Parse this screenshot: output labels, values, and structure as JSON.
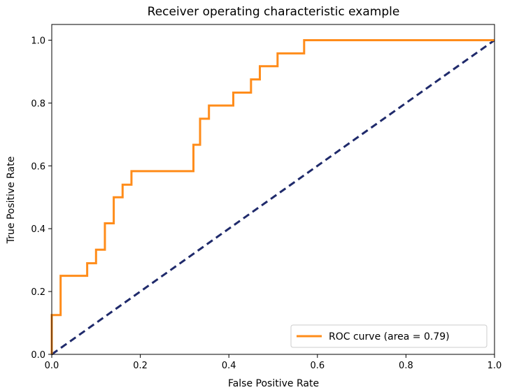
{
  "chart_data": {
    "type": "line",
    "title": "Receiver operating characteristic example",
    "xlabel": "False Positive Rate",
    "ylabel": "True Positive Rate",
    "xlim": [
      0.0,
      1.0
    ],
    "ylim": [
      0.0,
      1.05
    ],
    "x_ticks": [
      0.0,
      0.2,
      0.4,
      0.6,
      0.8,
      1.0
    ],
    "y_ticks": [
      0.0,
      0.2,
      0.4,
      0.6,
      0.8,
      1.0
    ],
    "x_tick_labels": [
      "0.0",
      "0.2",
      "0.4",
      "0.6",
      "0.8",
      "1.0"
    ],
    "y_tick_labels": [
      "0.0",
      "0.2",
      "0.4",
      "0.6",
      "0.8",
      "1.0"
    ],
    "grid": false,
    "legend_position": "lower-right",
    "series": [
      {
        "name": "ROC curve (area = 0.79)",
        "color": "#ff8c1a",
        "style": "solid",
        "x": [
          0.0,
          0.0,
          0.02,
          0.02,
          0.08,
          0.08,
          0.1,
          0.1,
          0.12,
          0.12,
          0.14,
          0.14,
          0.16,
          0.16,
          0.18,
          0.18,
          0.32,
          0.32,
          0.335,
          0.335,
          0.355,
          0.355,
          0.41,
          0.41,
          0.45,
          0.45,
          0.47,
          0.47,
          0.51,
          0.51,
          0.57,
          0.57,
          1.0
        ],
        "y": [
          0.0,
          0.125,
          0.125,
          0.25,
          0.25,
          0.29,
          0.29,
          0.333,
          0.333,
          0.417,
          0.417,
          0.5,
          0.5,
          0.54,
          0.54,
          0.583,
          0.583,
          0.667,
          0.667,
          0.75,
          0.75,
          0.792,
          0.792,
          0.833,
          0.833,
          0.875,
          0.875,
          0.917,
          0.917,
          0.958,
          0.958,
          1.0,
          1.0
        ]
      },
      {
        "name": "",
        "color": "#1f2a6b",
        "style": "dashed",
        "x": [
          0.0,
          1.0
        ],
        "y": [
          0.0,
          1.0
        ]
      }
    ]
  }
}
